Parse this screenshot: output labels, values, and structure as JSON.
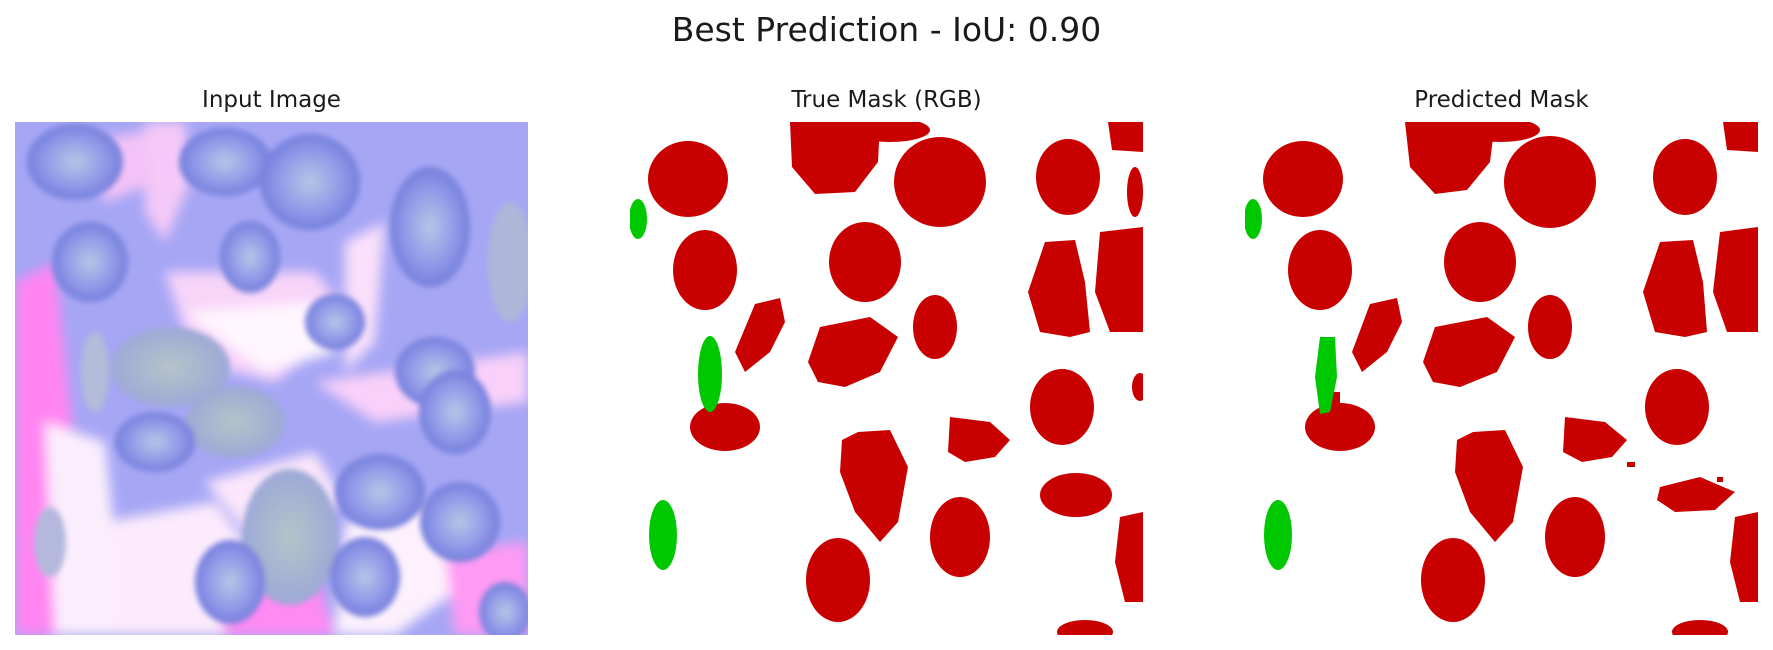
{
  "figure": {
    "suptitle": "Best Prediction - IoU: 0.90"
  },
  "panels": [
    {
      "title": "Input Image"
    },
    {
      "title": "True Mask (RGB)"
    },
    {
      "title": "Predicted Mask"
    }
  ],
  "colors": {
    "background": "#ffffff",
    "class_red": "#c80000",
    "class_green": "#00c800",
    "input_base": "#a5a5f7",
    "input_pink": "#ff7cf0",
    "input_light": "#fdf0fd"
  }
}
